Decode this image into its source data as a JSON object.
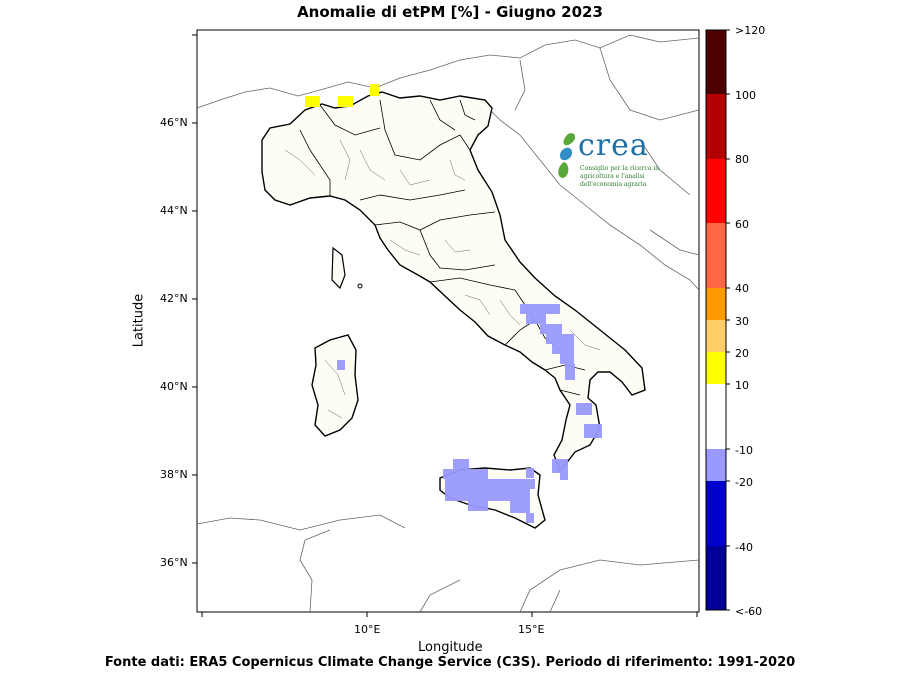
{
  "title": "Anomalie di etPM  [%] - Giugno 2023",
  "footer": "Fonte dati: ERA5 Copernicus Climate Change Service (C3S). Periodo di riferimento: 1991-2020",
  "axes": {
    "xlabel": "Longitude",
    "ylabel": "Latitude",
    "xticks": [
      "10°E",
      "15°E"
    ],
    "yticks": [
      "46°N",
      "44°N",
      "42°N",
      "40°N",
      "38°N",
      "36°N"
    ]
  },
  "colorbar": {
    "labels": [
      ">120",
      "100",
      "80",
      "60",
      "40",
      "30",
      "20",
      "10",
      "-10",
      "-20",
      "-40",
      "<-60"
    ],
    "colors": [
      "#4d0000",
      "#b30000",
      "#ff0000",
      "#ff6644",
      "#ff9900",
      "#ffcc66",
      "#ffff00",
      "#ffffff",
      "#9999ff",
      "#0000cc",
      "#000099",
      "#000044"
    ]
  },
  "logo": {
    "word": "crea",
    "subtitle": "Consiglio per la ricerca in agricoltura e l'analisi dell'economia agraria"
  },
  "legend_colors": {
    "negative_anomaly": "#9999ff",
    "positive_anomaly": "#ffff00",
    "neutral": "#fdfdf6"
  }
}
